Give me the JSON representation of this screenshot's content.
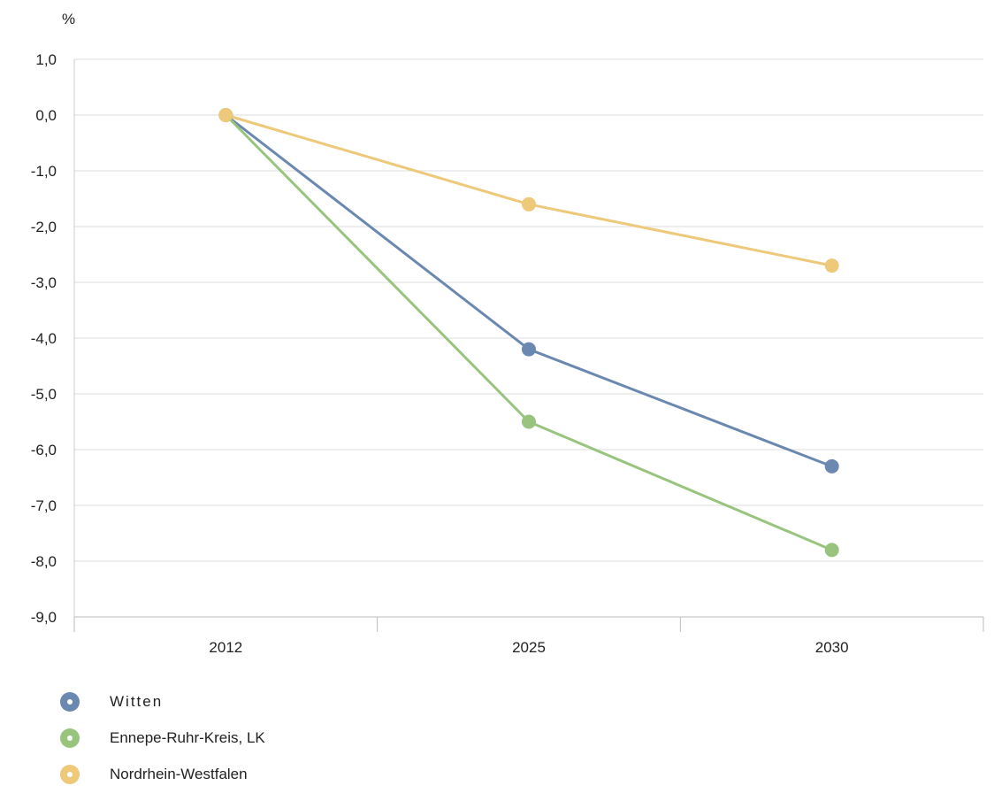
{
  "chart_data": {
    "type": "line",
    "unit_label": "%",
    "categories": [
      "2012",
      "2025",
      "2030"
    ],
    "y_ticks": [
      "1,0",
      "0,0",
      "-1,0",
      "-2,0",
      "-3,0",
      "-4,0",
      "-5,0",
      "-6,0",
      "-7,0",
      "-8,0",
      "-9,0"
    ],
    "y_tick_values": [
      1,
      0,
      -1,
      -2,
      -3,
      -4,
      -5,
      -6,
      -7,
      -8,
      -9
    ],
    "ylim": [
      -9,
      1
    ],
    "grid": true,
    "legend_position": "bottom-left",
    "series": [
      {
        "name": "Witten",
        "color": "#6a88b0",
        "values": [
          0.0,
          -4.2,
          -6.3
        ]
      },
      {
        "name": "Ennepe-Ruhr-Kreis, LK",
        "color": "#98c47e",
        "values": [
          0.0,
          -5.5,
          -7.8
        ]
      },
      {
        "name": "Nordrhein-Westfalen",
        "color": "#edc979",
        "values": [
          0.0,
          -1.6,
          -2.7
        ]
      }
    ]
  }
}
